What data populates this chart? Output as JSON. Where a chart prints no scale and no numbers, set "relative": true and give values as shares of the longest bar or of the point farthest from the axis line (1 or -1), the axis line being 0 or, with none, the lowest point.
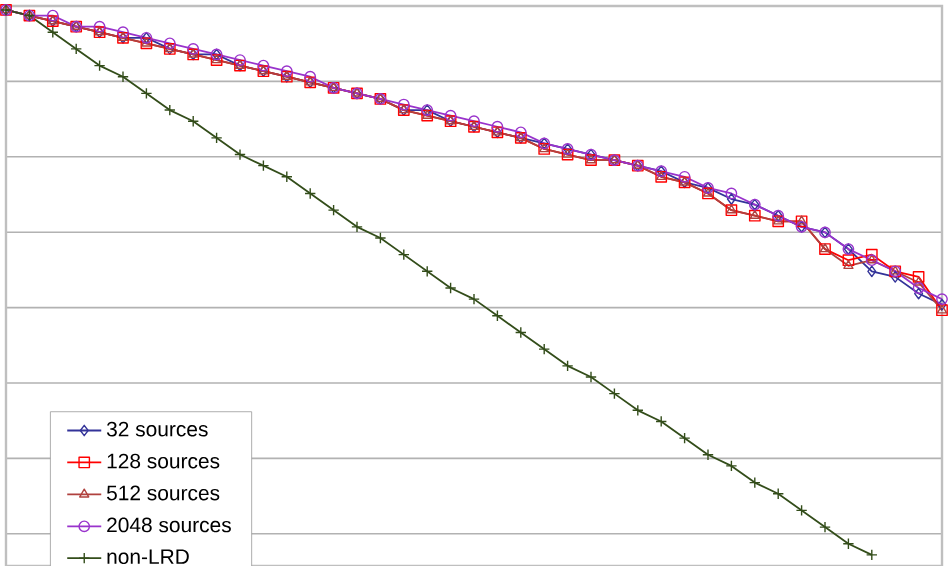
{
  "chart_data": {
    "type": "line",
    "relative": true,
    "categories": [
      null,
      null,
      null,
      null,
      null,
      null,
      null,
      null,
      null,
      null,
      null,
      null,
      null,
      null,
      null,
      null,
      null,
      null,
      null,
      null,
      null,
      null,
      null,
      null,
      null,
      null,
      null,
      null,
      null,
      null,
      null,
      null,
      null,
      null,
      null,
      null,
      null,
      null,
      null,
      null,
      null
    ],
    "series": [
      {
        "name": "32 sources",
        "color": "#333399",
        "marker": "diamond",
        "values": [
          1.0,
          0.99,
          0.98,
          0.97,
          0.96,
          0.95,
          0.95,
          0.93,
          0.92,
          0.92,
          0.9,
          0.89,
          0.88,
          0.87,
          0.86,
          0.85,
          0.84,
          0.82,
          0.82,
          0.8,
          0.79,
          0.78,
          0.77,
          0.76,
          0.75,
          0.74,
          0.73,
          0.72,
          0.71,
          0.69,
          0.68,
          0.66,
          0.65,
          0.63,
          0.61,
          0.6,
          0.57,
          0.53,
          0.52,
          0.49,
          0.47
        ]
      },
      {
        "name": "128 sources",
        "color": "#ff0000",
        "marker": "square",
        "values": [
          1.0,
          0.99,
          0.98,
          0.97,
          0.96,
          0.95,
          0.94,
          0.93,
          0.92,
          0.91,
          0.9,
          0.89,
          0.88,
          0.87,
          0.86,
          0.85,
          0.84,
          0.82,
          0.81,
          0.8,
          0.79,
          0.78,
          0.77,
          0.75,
          0.74,
          0.73,
          0.73,
          0.72,
          0.7,
          0.69,
          0.67,
          0.64,
          0.63,
          0.62,
          0.62,
          0.57,
          0.55,
          0.56,
          0.53,
          0.52,
          0.46
        ]
      },
      {
        "name": "512 sources",
        "color": "#b0413e",
        "marker": "triangle",
        "values": [
          1.0,
          0.99,
          0.98,
          0.97,
          0.96,
          0.95,
          0.94,
          0.93,
          0.92,
          0.91,
          0.9,
          0.89,
          0.88,
          0.87,
          0.86,
          0.85,
          0.84,
          0.82,
          0.81,
          0.8,
          0.79,
          0.78,
          0.77,
          0.75,
          0.74,
          0.73,
          0.73,
          0.72,
          0.7,
          0.69,
          0.67,
          0.64,
          0.63,
          0.62,
          0.62,
          0.57,
          0.54,
          0.55,
          0.53,
          0.51,
          0.46
        ]
      },
      {
        "name": "2048 sources",
        "color": "#9933cc",
        "marker": "circle",
        "values": [
          1.0,
          0.99,
          0.99,
          0.97,
          0.97,
          0.96,
          0.95,
          0.94,
          0.93,
          0.92,
          0.91,
          0.9,
          0.89,
          0.88,
          0.86,
          0.85,
          0.84,
          0.83,
          0.82,
          0.81,
          0.8,
          0.79,
          0.78,
          0.76,
          0.75,
          0.74,
          0.73,
          0.72,
          0.71,
          0.7,
          0.68,
          0.67,
          0.65,
          0.63,
          0.61,
          0.6,
          0.57,
          0.55,
          0.53,
          0.5,
          0.48
        ]
      },
      {
        "name": "non-LRD",
        "color": "#334d1a",
        "marker": "cross",
        "values": [
          1.0,
          0.99,
          0.96,
          0.93,
          0.9,
          0.88,
          0.85,
          0.82,
          0.8,
          0.77,
          0.74,
          0.72,
          0.7,
          0.67,
          0.64,
          0.61,
          0.59,
          0.56,
          0.53,
          0.5,
          0.48,
          0.45,
          0.42,
          0.39,
          0.36,
          0.34,
          0.31,
          0.28,
          0.26,
          0.23,
          0.2,
          0.18,
          0.15,
          0.13,
          0.1,
          0.07,
          0.04,
          0.02,
          null,
          null,
          null
        ]
      }
    ],
    "grid": "y",
    "legend": "bottom left",
    "line_style": "solid"
  }
}
